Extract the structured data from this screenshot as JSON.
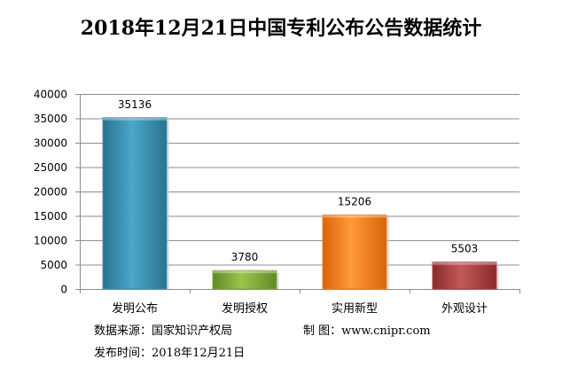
{
  "chart_data": {
    "type": "bar",
    "title": "2018年12月21日中国专利公布公告数据统计",
    "categories": [
      "发明公布",
      "发明授权",
      "实用新型",
      "外观设计"
    ],
    "values": [
      35136,
      3780,
      15206,
      5503
    ],
    "data_labels": [
      "35136",
      "3780",
      "15206",
      "5503"
    ],
    "ylim": [
      0,
      40000
    ],
    "yticks": [
      0,
      5000,
      10000,
      15000,
      20000,
      25000,
      30000,
      35000,
      40000
    ],
    "ytick_labels": [
      "0",
      "5000",
      "10000",
      "15000",
      "20000",
      "25000",
      "30000",
      "35000",
      "40000"
    ],
    "xlabel": "",
    "ylabel": "",
    "grid": true,
    "legend": "none",
    "colors": [
      "#3a8fae",
      "#7aa23a",
      "#f07b1a",
      "#a83a3a"
    ]
  },
  "footer": {
    "source_label": "数据来源：",
    "source_value": "国家知识产权局",
    "maker_label": "制 图：",
    "maker_value": "www.cnipr.com",
    "date_label": "发布时间：",
    "date_value": "2018年12月21日"
  }
}
